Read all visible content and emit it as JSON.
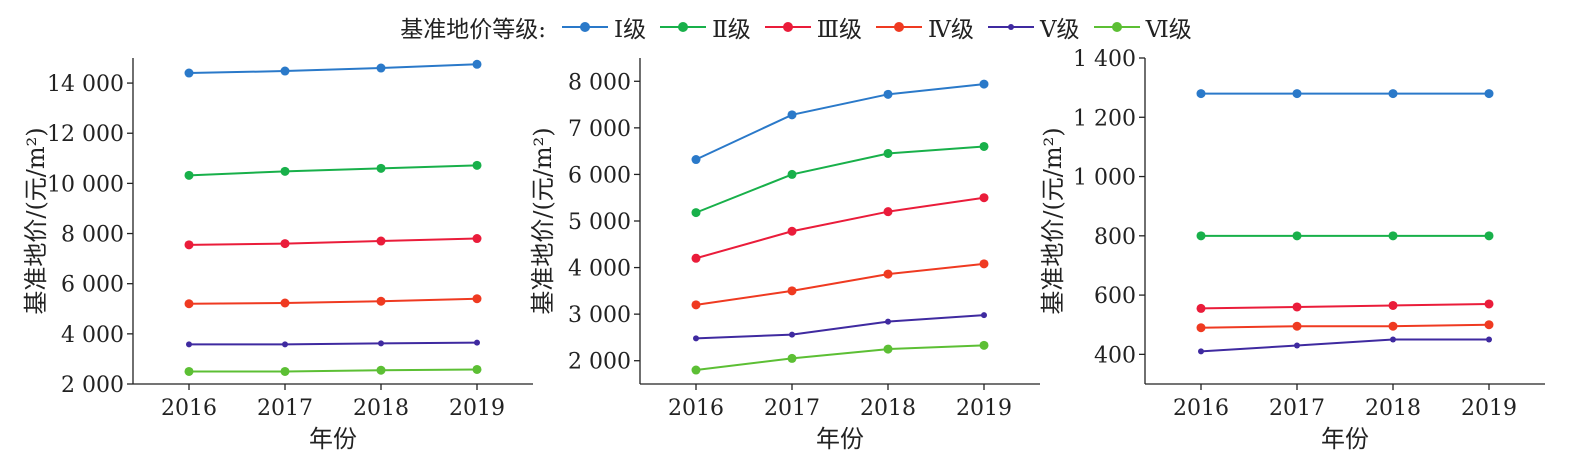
{
  "legend": {
    "title": "基准地价等级:",
    "items": [
      {
        "label": "Ⅰ级",
        "color": "#2a79c9"
      },
      {
        "label": "Ⅱ级",
        "color": "#18b04a"
      },
      {
        "label": "Ⅲ级",
        "color": "#ea1c3a"
      },
      {
        "label": "Ⅳ级",
        "color": "#ef3a21"
      },
      {
        "label": "Ⅴ级",
        "color": "#3f2aa0"
      },
      {
        "label": "Ⅵ级",
        "color": "#5cbf34"
      }
    ]
  },
  "chart_data": [
    {
      "type": "line",
      "xlabel": "年份",
      "ylabel": "基准地价/(元/m²)",
      "x": [
        "2016",
        "2017",
        "2018",
        "2019"
      ],
      "ylim": [
        2000,
        15000
      ],
      "yticks": [
        2000,
        4000,
        6000,
        8000,
        10000,
        12000,
        14000
      ],
      "ytick_labels": [
        "2 000",
        "4 000",
        "6 000",
        "8 000",
        "10 000",
        "12 000",
        "14 000"
      ],
      "series": [
        {
          "name": "Ⅰ级",
          "values": [
            14400,
            14480,
            14600,
            14750
          ]
        },
        {
          "name": "Ⅱ级",
          "values": [
            10320,
            10480,
            10600,
            10720
          ]
        },
        {
          "name": "Ⅲ级",
          "values": [
            7550,
            7600,
            7700,
            7800
          ]
        },
        {
          "name": "Ⅳ级",
          "values": [
            5200,
            5230,
            5300,
            5400
          ]
        },
        {
          "name": "Ⅴ级",
          "values": [
            3580,
            3580,
            3620,
            3650
          ]
        },
        {
          "name": "Ⅵ级",
          "values": [
            2500,
            2500,
            2550,
            2580
          ]
        }
      ]
    },
    {
      "type": "line",
      "xlabel": "年份",
      "ylabel": "基准地价/(元/m²)",
      "x": [
        "2016",
        "2017",
        "2018",
        "2019"
      ],
      "ylim": [
        1500,
        8500
      ],
      "yticks": [
        2000,
        3000,
        4000,
        5000,
        6000,
        7000,
        8000
      ],
      "ytick_labels": [
        "2 000",
        "3 000",
        "4 000",
        "5 000",
        "6 000",
        "7 000",
        "8 000"
      ],
      "series": [
        {
          "name": "Ⅰ级",
          "values": [
            6320,
            7280,
            7720,
            7940
          ]
        },
        {
          "name": "Ⅱ级",
          "values": [
            5180,
            6000,
            6450,
            6600
          ]
        },
        {
          "name": "Ⅲ级",
          "values": [
            4200,
            4780,
            5200,
            5500
          ]
        },
        {
          "name": "Ⅳ级",
          "values": [
            3200,
            3500,
            3860,
            4080
          ]
        },
        {
          "name": "Ⅴ级",
          "values": [
            2480,
            2560,
            2840,
            2980
          ]
        },
        {
          "name": "Ⅵ级",
          "values": [
            1800,
            2050,
            2250,
            2330
          ]
        }
      ]
    },
    {
      "type": "line",
      "xlabel": "年份",
      "ylabel": "基准地价/(元/m²)",
      "x": [
        "2016",
        "2017",
        "2018",
        "2019"
      ],
      "ylim": [
        300,
        1400
      ],
      "yticks": [
        400,
        600,
        800,
        1000,
        1200,
        1400
      ],
      "ytick_labels": [
        "400",
        "600",
        "800",
        "1 000",
        "1 200",
        "1 400"
      ],
      "series": [
        {
          "name": "Ⅰ级",
          "values": [
            1280,
            1280,
            1280,
            1280
          ]
        },
        {
          "name": "Ⅱ级",
          "values": [
            800,
            800,
            800,
            800
          ]
        },
        {
          "name": "Ⅲ级",
          "values": [
            555,
            560,
            565,
            570
          ]
        },
        {
          "name": "Ⅳ级",
          "values": [
            490,
            495,
            495,
            500
          ]
        },
        {
          "name": "Ⅴ级",
          "values": [
            410,
            430,
            450,
            450
          ]
        }
      ]
    }
  ]
}
